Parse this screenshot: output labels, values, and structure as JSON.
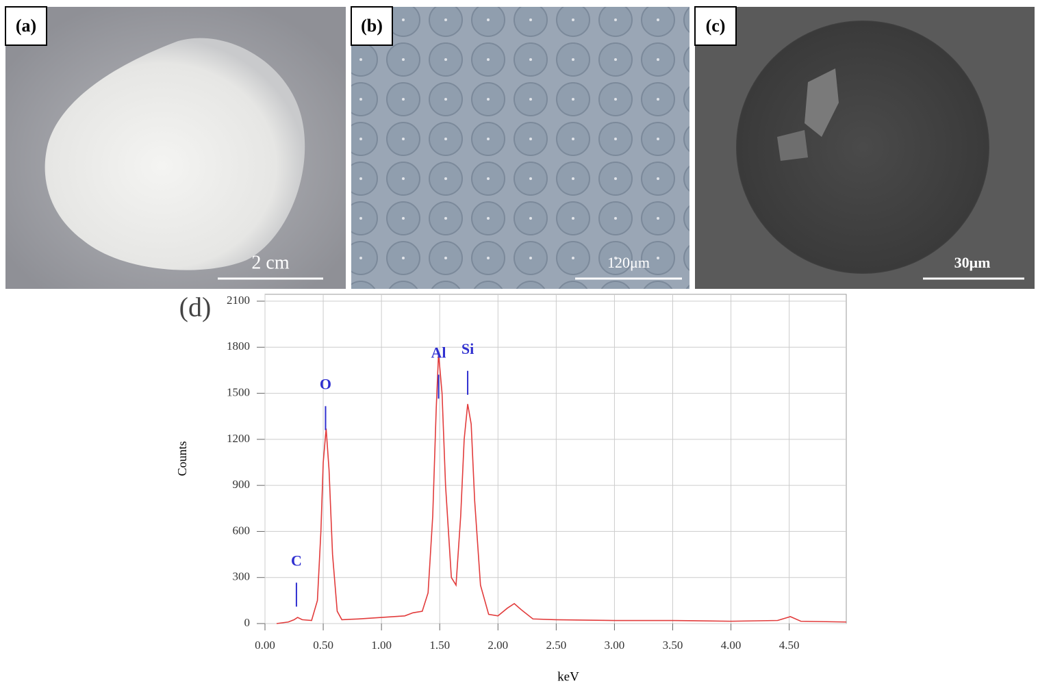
{
  "panels": [
    {
      "label": "(a)",
      "scale": "2 cm"
    },
    {
      "label": "(b)",
      "scale": "120μm"
    },
    {
      "label": "(c)",
      "scale": "30μm"
    }
  ],
  "chart_data": {
    "type": "line",
    "label": "(d)",
    "x_label": "keV",
    "y_label": "Counts",
    "x": [
      0.1,
      0.2,
      0.25,
      0.28,
      0.32,
      0.4,
      0.45,
      0.48,
      0.5,
      0.525,
      0.55,
      0.58,
      0.62,
      0.66,
      0.8,
      1.0,
      1.2,
      1.27,
      1.35,
      1.4,
      1.44,
      1.47,
      1.49,
      1.52,
      1.55,
      1.6,
      1.64,
      1.68,
      1.71,
      1.74,
      1.77,
      1.8,
      1.85,
      1.92,
      2.0,
      2.08,
      2.14,
      2.2,
      2.3,
      2.5,
      3.0,
      3.5,
      4.0,
      4.4,
      4.51,
      4.6,
      4.99
    ],
    "values": [
      0,
      10,
      25,
      40,
      25,
      20,
      150,
      600,
      1050,
      1270,
      1000,
      450,
      80,
      25,
      30,
      40,
      50,
      70,
      80,
      200,
      700,
      1400,
      1760,
      1500,
      900,
      300,
      250,
      700,
      1200,
      1430,
      1300,
      800,
      250,
      60,
      50,
      100,
      130,
      90,
      30,
      25,
      20,
      20,
      15,
      20,
      45,
      15,
      10
    ],
    "color": "#e23b3b",
    "xlim": [
      0,
      4.99
    ],
    "ylim": [
      0,
      2100
    ],
    "xticks": [
      {
        "value": 0,
        "label": "0.00"
      },
      {
        "value": 0.5,
        "label": "0.50"
      },
      {
        "value": 1,
        "label": "1.00"
      },
      {
        "value": 1.5,
        "label": "1.50"
      },
      {
        "value": 2,
        "label": "2.00"
      },
      {
        "value": 2.5,
        "label": "2.50"
      },
      {
        "value": 3,
        "label": "3.00"
      },
      {
        "value": 3.5,
        "label": "3.50"
      },
      {
        "value": 4,
        "label": "4.00"
      },
      {
        "value": 4.5,
        "label": "4.50"
      }
    ],
    "yticks": [
      0,
      300,
      600,
      900,
      1200,
      1500,
      1800,
      2100
    ],
    "grid": true,
    "annotation_color": "#2f2fd0",
    "annotations": [
      {
        "text": "C",
        "x": 0.27,
        "y": 400
      },
      {
        "text": "O",
        "x": 0.52,
        "y": 1550
      },
      {
        "text": "Al",
        "x": 1.49,
        "y": 1755
      },
      {
        "text": "Si",
        "x": 1.74,
        "y": 1780
      }
    ]
  }
}
